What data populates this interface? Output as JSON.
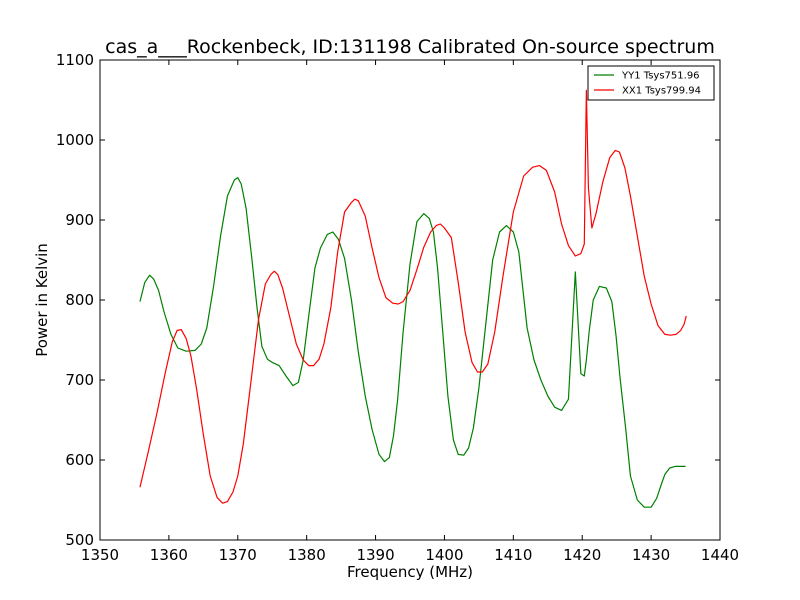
{
  "chart_data": {
    "type": "line",
    "title": "cas_a___Rockenbeck, ID:131198 Calibrated On-source spectrum",
    "xlabel": "Frequency (MHz)",
    "ylabel": "Power in Kelvin",
    "xlim": [
      1350,
      1440
    ],
    "ylim": [
      500,
      1100
    ],
    "xticks": [
      1350,
      1360,
      1370,
      1380,
      1390,
      1400,
      1410,
      1420,
      1430,
      1440
    ],
    "yticks": [
      500,
      600,
      700,
      800,
      900,
      1000,
      1100
    ],
    "grid": false,
    "legend_position": "top-right",
    "series": [
      {
        "name": "YY1 Tsys751.96",
        "color": "#008000",
        "x": [
          1355.8,
          1356.5,
          1357.2,
          1357.8,
          1358.5,
          1359.3,
          1360.3,
          1361.3,
          1362.5,
          1363.8,
          1364.7,
          1365.5,
          1366.5,
          1367.5,
          1368.5,
          1369.5,
          1370.0,
          1370.5,
          1371.2,
          1372.0,
          1372.8,
          1373.5,
          1374.3,
          1375.0,
          1376.0,
          1377.0,
          1378.0,
          1378.8,
          1379.5,
          1380.3,
          1381.2,
          1382.0,
          1383.0,
          1383.8,
          1384.6,
          1385.5,
          1386.5,
          1387.5,
          1388.5,
          1389.5,
          1390.5,
          1391.3,
          1392.0,
          1392.6,
          1393.2,
          1394.0,
          1395.0,
          1396.0,
          1397.0,
          1397.8,
          1398.4,
          1399.0,
          1399.8,
          1400.5,
          1401.3,
          1402.0,
          1402.8,
          1403.5,
          1404.2,
          1405.0,
          1406.0,
          1407.0,
          1408.0,
          1409.0,
          1410.0,
          1410.8,
          1411.3,
          1412.0,
          1413.0,
          1414.0,
          1415.0,
          1416.0,
          1417.0,
          1418.0,
          1419.0,
          1419.8,
          1420.3,
          1420.6,
          1421.0,
          1421.6,
          1422.5,
          1423.5,
          1424.3,
          1424.9,
          1425.5,
          1426.3,
          1427.0,
          1428.0,
          1429.0,
          1430.0,
          1430.8,
          1431.5,
          1432.0,
          1432.7,
          1433.5,
          1434.3,
          1435.0
        ],
        "values": [
          798,
          822,
          831,
          826,
          812,
          785,
          757,
          740,
          736,
          737,
          745,
          765,
          818,
          880,
          930,
          950,
          953,
          945,
          915,
          855,
          790,
          742,
          726,
          722,
          718,
          705,
          693,
          697,
          725,
          780,
          840,
          865,
          882,
          885,
          876,
          852,
          800,
          735,
          680,
          638,
          607,
          598,
          603,
          630,
          675,
          760,
          845,
          898,
          908,
          902,
          885,
          840,
          755,
          680,
          625,
          607,
          606,
          615,
          640,
          690,
          770,
          850,
          885,
          893,
          885,
          860,
          820,
          765,
          725,
          700,
          680,
          666,
          662,
          676,
          835,
          708,
          705,
          725,
          760,
          800,
          817,
          815,
          798,
          756,
          702,
          640,
          580,
          550,
          541,
          541,
          552,
          570,
          582,
          590,
          592,
          592,
          592
        ],
        "_note": ""
      },
      {
        "name": "XX1 Tsys799.94",
        "color": "#ff0000",
        "x": [
          1355.8,
          1357.0,
          1358.3,
          1359.5,
          1360.5,
          1361.2,
          1361.8,
          1362.5,
          1363.2,
          1364.0,
          1365.0,
          1366.0,
          1367.0,
          1367.8,
          1368.5,
          1369.3,
          1370.0,
          1370.8,
          1371.8,
          1373.0,
          1374.0,
          1374.8,
          1375.3,
          1375.8,
          1376.5,
          1377.5,
          1378.5,
          1379.5,
          1380.3,
          1381.0,
          1381.8,
          1382.5,
          1383.5,
          1384.5,
          1385.5,
          1386.5,
          1387.0,
          1387.5,
          1388.5,
          1389.5,
          1390.5,
          1391.5,
          1392.5,
          1393.3,
          1394.0,
          1395.0,
          1396.0,
          1397.0,
          1398.0,
          1398.8,
          1399.4,
          1400.0,
          1401.0,
          1402.0,
          1403.0,
          1404.0,
          1404.8,
          1405.5,
          1406.3,
          1407.3,
          1408.5,
          1410.0,
          1411.5,
          1412.8,
          1413.8,
          1414.8,
          1416.0,
          1417.0,
          1418.0,
          1419.0,
          1419.8,
          1420.3,
          1420.6,
          1420.9,
          1421.4,
          1422.0,
          1423.0,
          1424.0,
          1424.8,
          1425.4,
          1426.2,
          1427.0,
          1428.0,
          1429.0,
          1430.0,
          1431.0,
          1432.0,
          1432.8,
          1433.6,
          1434.3,
          1434.8,
          1435.1
        ],
        "values": [
          566,
          610,
          660,
          710,
          748,
          762,
          763,
          752,
          730,
          690,
          632,
          580,
          553,
          546,
          548,
          560,
          580,
          620,
          690,
          775,
          820,
          832,
          836,
          832,
          815,
          780,
          745,
          725,
          718,
          718,
          726,
          745,
          790,
          860,
          910,
          922,
          926,
          924,
          905,
          865,
          828,
          803,
          796,
          795,
          798,
          812,
          838,
          866,
          885,
          893,
          895,
          890,
          878,
          822,
          760,
          722,
          710,
          710,
          720,
          760,
          830,
          910,
          955,
          966,
          968,
          962,
          935,
          895,
          868,
          855,
          858,
          870,
          1062,
          940,
          890,
          908,
          948,
          978,
          987,
          985,
          965,
          930,
          880,
          830,
          795,
          768,
          757,
          756,
          757,
          762,
          770,
          780
        ],
        "_note": ""
      }
    ]
  }
}
